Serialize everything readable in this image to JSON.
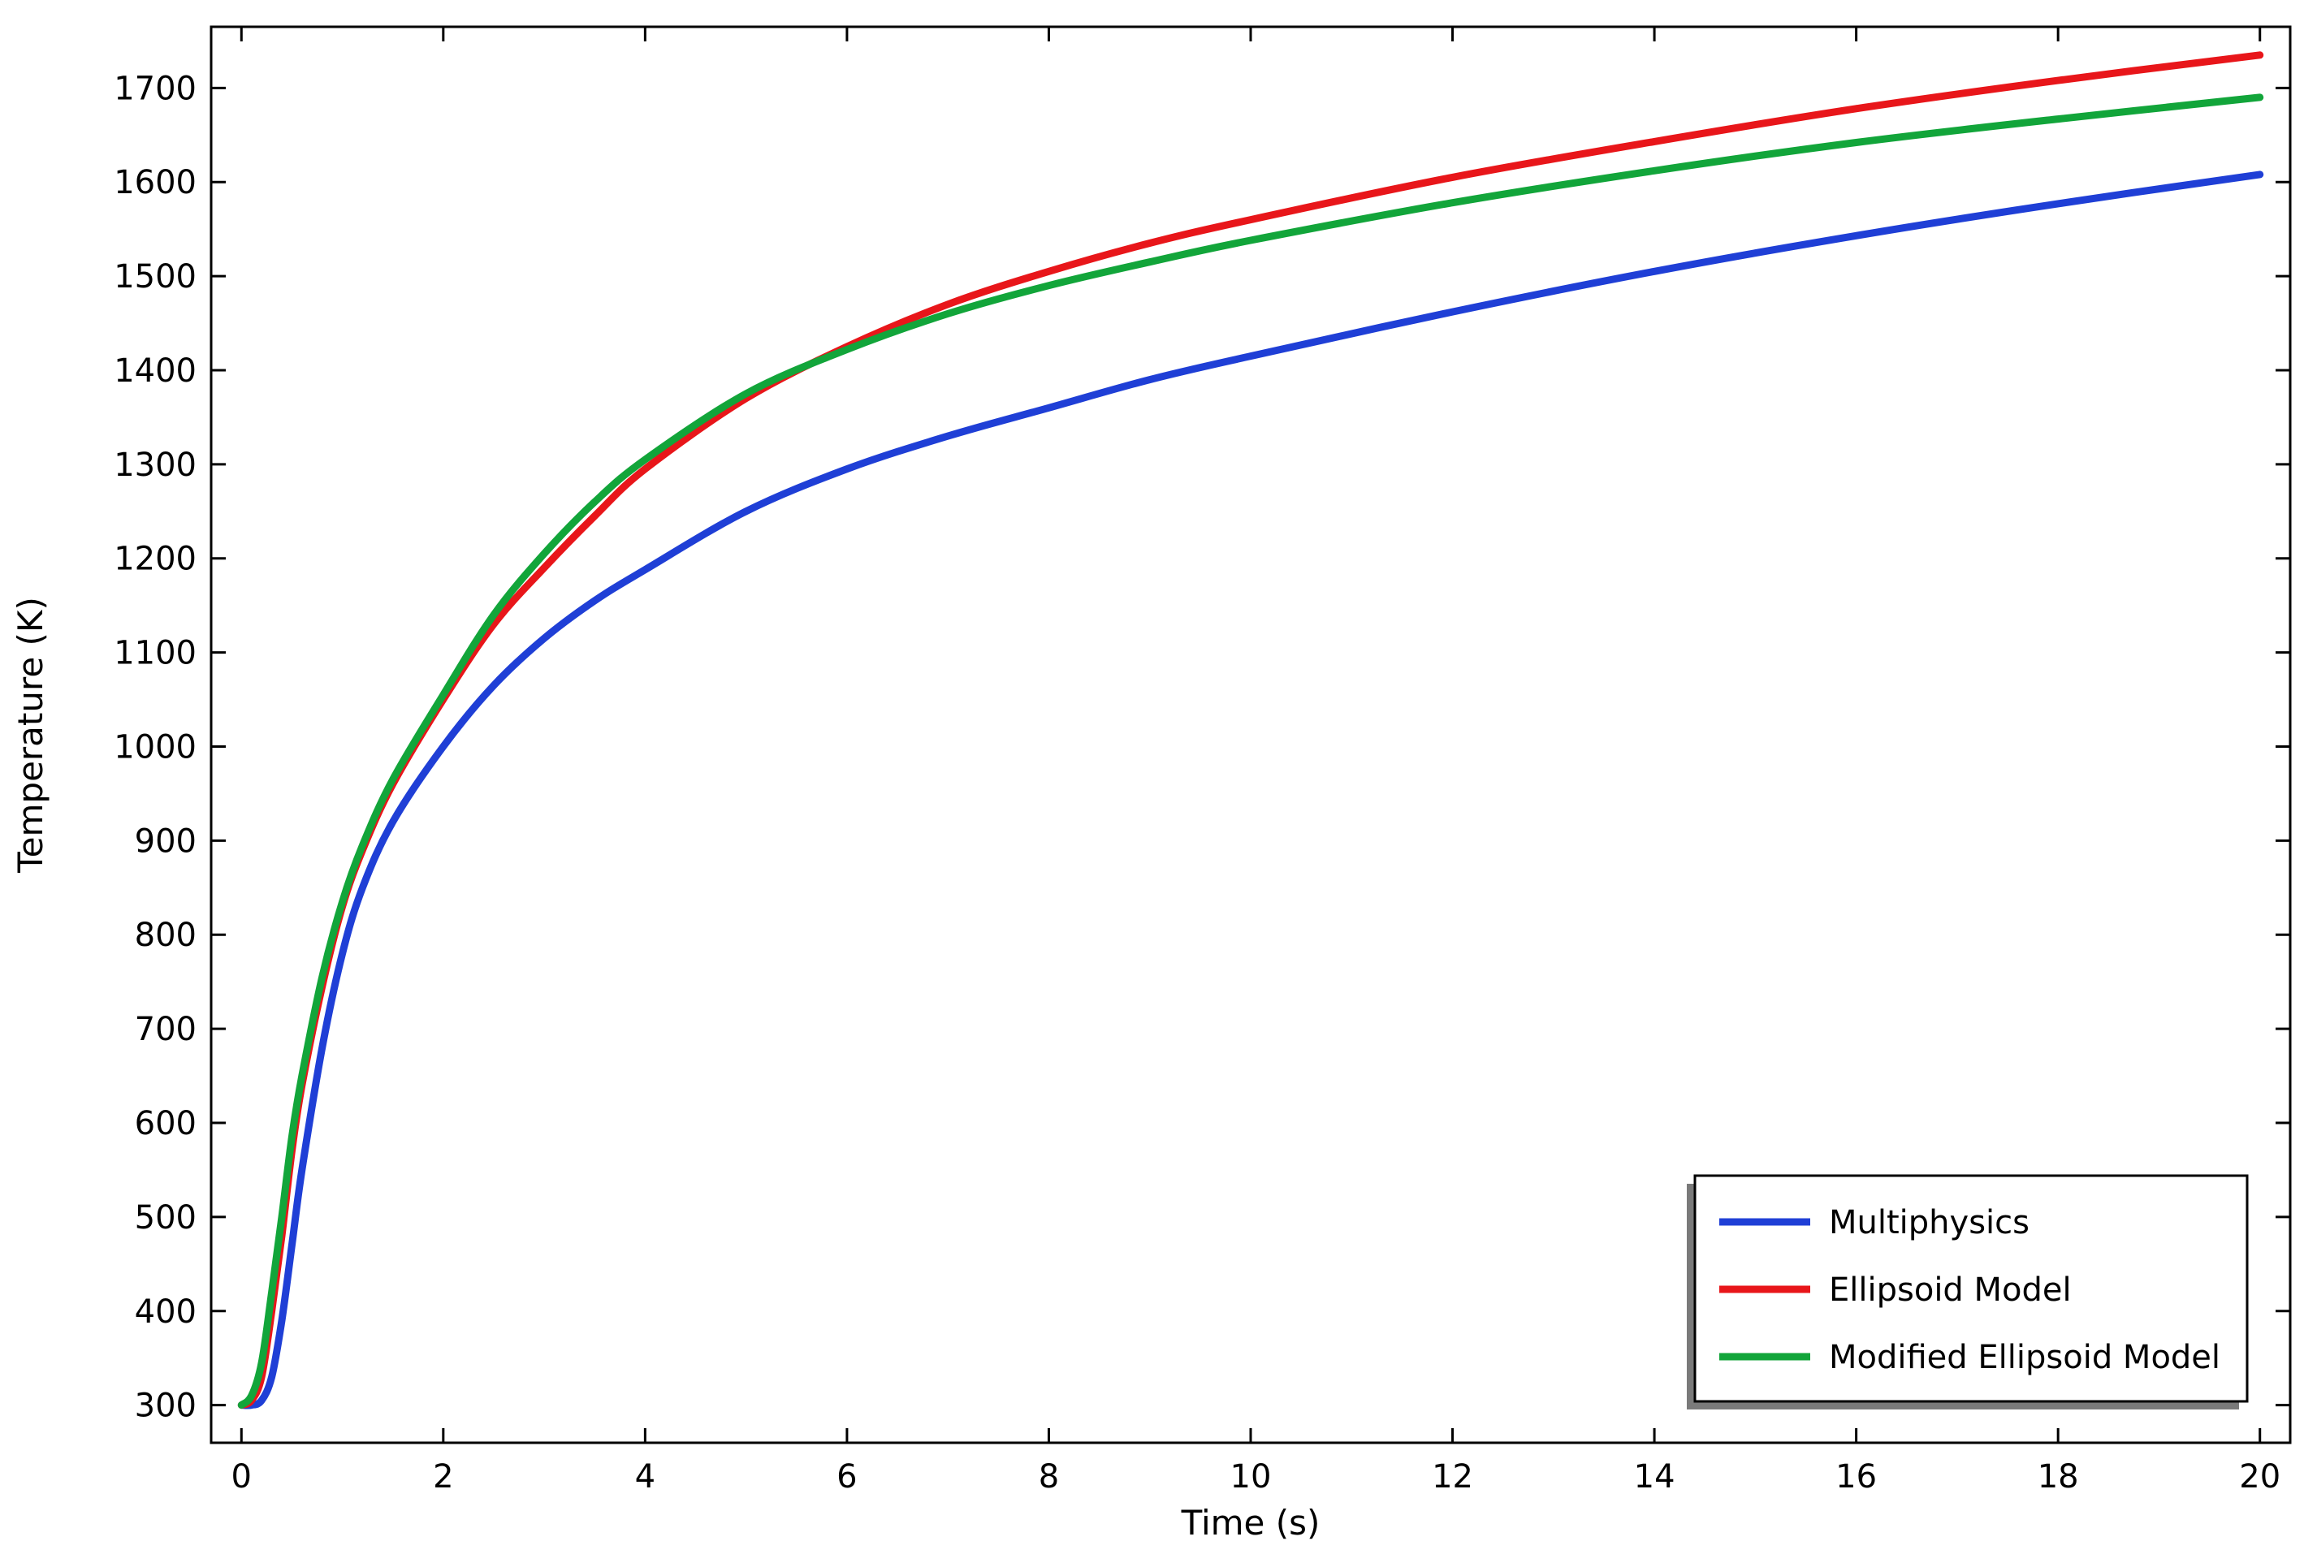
{
  "chart_data": {
    "type": "line",
    "title": "",
    "xlabel": "Time (s)",
    "ylabel": "Temperature (K)",
    "xlim": [
      -0.3,
      20.3
    ],
    "ylim": [
      260,
      1765
    ],
    "x_ticks": [
      0,
      2,
      4,
      6,
      8,
      10,
      12,
      14,
      16,
      18,
      20
    ],
    "x_tick_labels": [
      "0",
      "2",
      "4",
      "6",
      "8",
      "10",
      "12",
      "14",
      "16",
      "18",
      "20"
    ],
    "y_ticks": [
      300,
      400,
      500,
      600,
      700,
      800,
      900,
      1000,
      1100,
      1200,
      1300,
      1400,
      1500,
      1600,
      1700
    ],
    "y_tick_labels": [
      "300",
      "400",
      "500",
      "600",
      "700",
      "800",
      "900",
      "1000",
      "1100",
      "1200",
      "1300",
      "1400",
      "1500",
      "1600",
      "1700"
    ],
    "grid": false,
    "legend_position": "bottom-right",
    "series": [
      {
        "name": "Multiphysics",
        "color": "#1f3fd6",
        "x": [
          0,
          0.1,
          0.2,
          0.3,
          0.4,
          0.5,
          0.6,
          0.8,
          1.0,
          1.2,
          1.5,
          2.0,
          2.5,
          3.0,
          3.5,
          4.0,
          5.0,
          6.0,
          7.0,
          8.0,
          9.0,
          10.0,
          12.0,
          14.0,
          16.0,
          18.0,
          20.0
        ],
        "y": [
          300,
          300,
          305,
          330,
          390,
          470,
          550,
          680,
          780,
          850,
          920,
          1000,
          1065,
          1115,
          1155,
          1188,
          1250,
          1295,
          1330,
          1360,
          1390,
          1415,
          1462,
          1505,
          1543,
          1577,
          1608
        ]
      },
      {
        "name": "Ellipsoid Model",
        "color": "#e8161a",
        "x": [
          0,
          0.1,
          0.2,
          0.3,
          0.4,
          0.5,
          0.6,
          0.8,
          1.0,
          1.2,
          1.5,
          2.0,
          2.5,
          3.0,
          3.5,
          4.0,
          5.0,
          6.0,
          7.0,
          8.0,
          9.0,
          10.0,
          12.0,
          14.0,
          16.0,
          18.0,
          20.0
        ],
        "y": [
          300,
          305,
          330,
          400,
          480,
          570,
          640,
          745,
          830,
          890,
          960,
          1050,
          1130,
          1190,
          1245,
          1295,
          1370,
          1425,
          1470,
          1505,
          1535,
          1560,
          1605,
          1643,
          1678,
          1708,
          1735
        ]
      },
      {
        "name": "Modified Ellipsoid Model",
        "color": "#12a53a",
        "x": [
          0,
          0.1,
          0.2,
          0.3,
          0.4,
          0.5,
          0.6,
          0.8,
          1.0,
          1.2,
          1.5,
          2.0,
          2.5,
          3.0,
          3.5,
          4.0,
          5.0,
          6.0,
          7.0,
          8.0,
          9.0,
          10.0,
          12.0,
          14.0,
          16.0,
          18.0,
          20.0
        ],
        "y": [
          300,
          310,
          345,
          420,
          500,
          585,
          650,
          755,
          835,
          895,
          965,
          1055,
          1140,
          1205,
          1260,
          1305,
          1375,
          1422,
          1460,
          1490,
          1515,
          1538,
          1578,
          1612,
          1642,
          1667,
          1690
        ]
      }
    ]
  }
}
